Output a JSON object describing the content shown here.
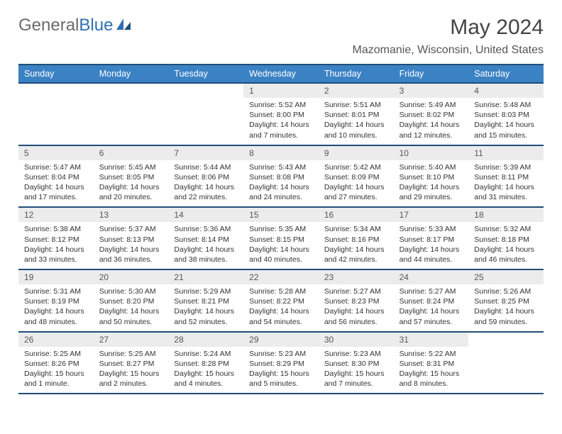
{
  "brand": {
    "part1": "General",
    "part2": "Blue"
  },
  "title": "May 2024",
  "location": "Mazomanie, Wisconsin, United States",
  "colors": {
    "header_bg": "#3b82c4",
    "header_border": "#1f4e79",
    "daynum_bg": "#ececec",
    "text": "#333333",
    "brand_grey": "#6b6b6b",
    "brand_blue": "#2f6fb0"
  },
  "typography": {
    "title_fontsize": 30,
    "location_fontsize": 16,
    "header_fontsize": 12.5,
    "daynum_fontsize": 12,
    "detail_fontsize": 10.5
  },
  "weekdays": [
    "Sunday",
    "Monday",
    "Tuesday",
    "Wednesday",
    "Thursday",
    "Friday",
    "Saturday"
  ],
  "weeks": [
    [
      null,
      null,
      null,
      {
        "n": "1",
        "sr": "5:52 AM",
        "ss": "8:00 PM",
        "dl": "14 hours and 7 minutes."
      },
      {
        "n": "2",
        "sr": "5:51 AM",
        "ss": "8:01 PM",
        "dl": "14 hours and 10 minutes."
      },
      {
        "n": "3",
        "sr": "5:49 AM",
        "ss": "8:02 PM",
        "dl": "14 hours and 12 minutes."
      },
      {
        "n": "4",
        "sr": "5:48 AM",
        "ss": "8:03 PM",
        "dl": "14 hours and 15 minutes."
      }
    ],
    [
      {
        "n": "5",
        "sr": "5:47 AM",
        "ss": "8:04 PM",
        "dl": "14 hours and 17 minutes."
      },
      {
        "n": "6",
        "sr": "5:45 AM",
        "ss": "8:05 PM",
        "dl": "14 hours and 20 minutes."
      },
      {
        "n": "7",
        "sr": "5:44 AM",
        "ss": "8:06 PM",
        "dl": "14 hours and 22 minutes."
      },
      {
        "n": "8",
        "sr": "5:43 AM",
        "ss": "8:08 PM",
        "dl": "14 hours and 24 minutes."
      },
      {
        "n": "9",
        "sr": "5:42 AM",
        "ss": "8:09 PM",
        "dl": "14 hours and 27 minutes."
      },
      {
        "n": "10",
        "sr": "5:40 AM",
        "ss": "8:10 PM",
        "dl": "14 hours and 29 minutes."
      },
      {
        "n": "11",
        "sr": "5:39 AM",
        "ss": "8:11 PM",
        "dl": "14 hours and 31 minutes."
      }
    ],
    [
      {
        "n": "12",
        "sr": "5:38 AM",
        "ss": "8:12 PM",
        "dl": "14 hours and 33 minutes."
      },
      {
        "n": "13",
        "sr": "5:37 AM",
        "ss": "8:13 PM",
        "dl": "14 hours and 36 minutes."
      },
      {
        "n": "14",
        "sr": "5:36 AM",
        "ss": "8:14 PM",
        "dl": "14 hours and 38 minutes."
      },
      {
        "n": "15",
        "sr": "5:35 AM",
        "ss": "8:15 PM",
        "dl": "14 hours and 40 minutes."
      },
      {
        "n": "16",
        "sr": "5:34 AM",
        "ss": "8:16 PM",
        "dl": "14 hours and 42 minutes."
      },
      {
        "n": "17",
        "sr": "5:33 AM",
        "ss": "8:17 PM",
        "dl": "14 hours and 44 minutes."
      },
      {
        "n": "18",
        "sr": "5:32 AM",
        "ss": "8:18 PM",
        "dl": "14 hours and 46 minutes."
      }
    ],
    [
      {
        "n": "19",
        "sr": "5:31 AM",
        "ss": "8:19 PM",
        "dl": "14 hours and 48 minutes."
      },
      {
        "n": "20",
        "sr": "5:30 AM",
        "ss": "8:20 PM",
        "dl": "14 hours and 50 minutes."
      },
      {
        "n": "21",
        "sr": "5:29 AM",
        "ss": "8:21 PM",
        "dl": "14 hours and 52 minutes."
      },
      {
        "n": "22",
        "sr": "5:28 AM",
        "ss": "8:22 PM",
        "dl": "14 hours and 54 minutes."
      },
      {
        "n": "23",
        "sr": "5:27 AM",
        "ss": "8:23 PM",
        "dl": "14 hours and 56 minutes."
      },
      {
        "n": "24",
        "sr": "5:27 AM",
        "ss": "8:24 PM",
        "dl": "14 hours and 57 minutes."
      },
      {
        "n": "25",
        "sr": "5:26 AM",
        "ss": "8:25 PM",
        "dl": "14 hours and 59 minutes."
      }
    ],
    [
      {
        "n": "26",
        "sr": "5:25 AM",
        "ss": "8:26 PM",
        "dl": "15 hours and 1 minute."
      },
      {
        "n": "27",
        "sr": "5:25 AM",
        "ss": "8:27 PM",
        "dl": "15 hours and 2 minutes."
      },
      {
        "n": "28",
        "sr": "5:24 AM",
        "ss": "8:28 PM",
        "dl": "15 hours and 4 minutes."
      },
      {
        "n": "29",
        "sr": "5:23 AM",
        "ss": "8:29 PM",
        "dl": "15 hours and 5 minutes."
      },
      {
        "n": "30",
        "sr": "5:23 AM",
        "ss": "8:30 PM",
        "dl": "15 hours and 7 minutes."
      },
      {
        "n": "31",
        "sr": "5:22 AM",
        "ss": "8:31 PM",
        "dl": "15 hours and 8 minutes."
      },
      null
    ]
  ]
}
